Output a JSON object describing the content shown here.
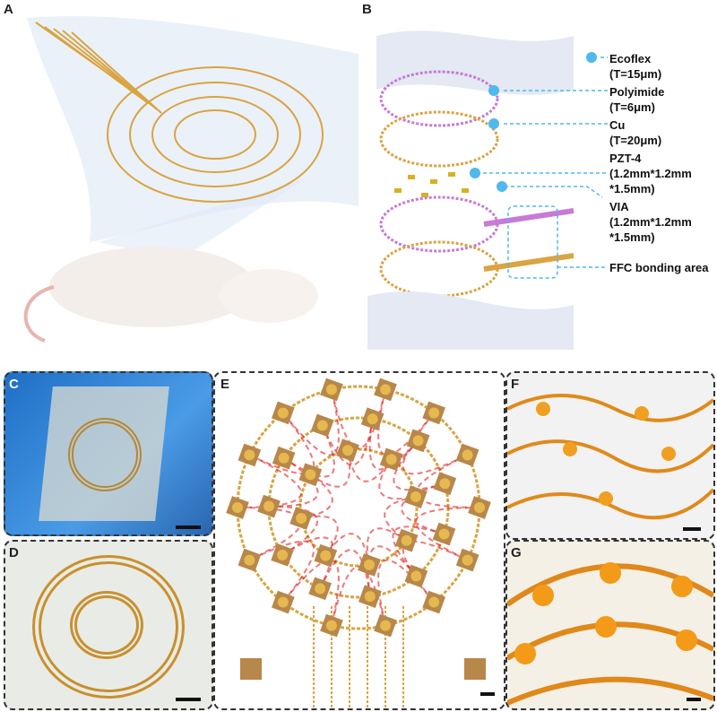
{
  "panels": {
    "a": "A",
    "b": "B",
    "c": "C",
    "d": "D",
    "e": "E",
    "f": "F",
    "g": "G"
  },
  "layers": [
    {
      "name": "Ecoflex",
      "spec": "(T=15μm)"
    },
    {
      "name": "Polyimide",
      "spec": "(T=6μm)"
    },
    {
      "name": "Cu",
      "spec": "(T=20μm)"
    },
    {
      "name": "PZT-4",
      "spec": "(1.2mm*1.2mm *1.5mm)"
    },
    {
      "name": "VIA",
      "spec": "(1.2mm*1.2mm *1.5mm)"
    },
    {
      "name": "FFC bonding area",
      "spec": ""
    }
  ],
  "colors": {
    "callout": "#4fb8ee",
    "copper": "#d9a441",
    "polyimide": "#c77ad6",
    "via": "#e02020",
    "pzt": "#b8862f"
  }
}
